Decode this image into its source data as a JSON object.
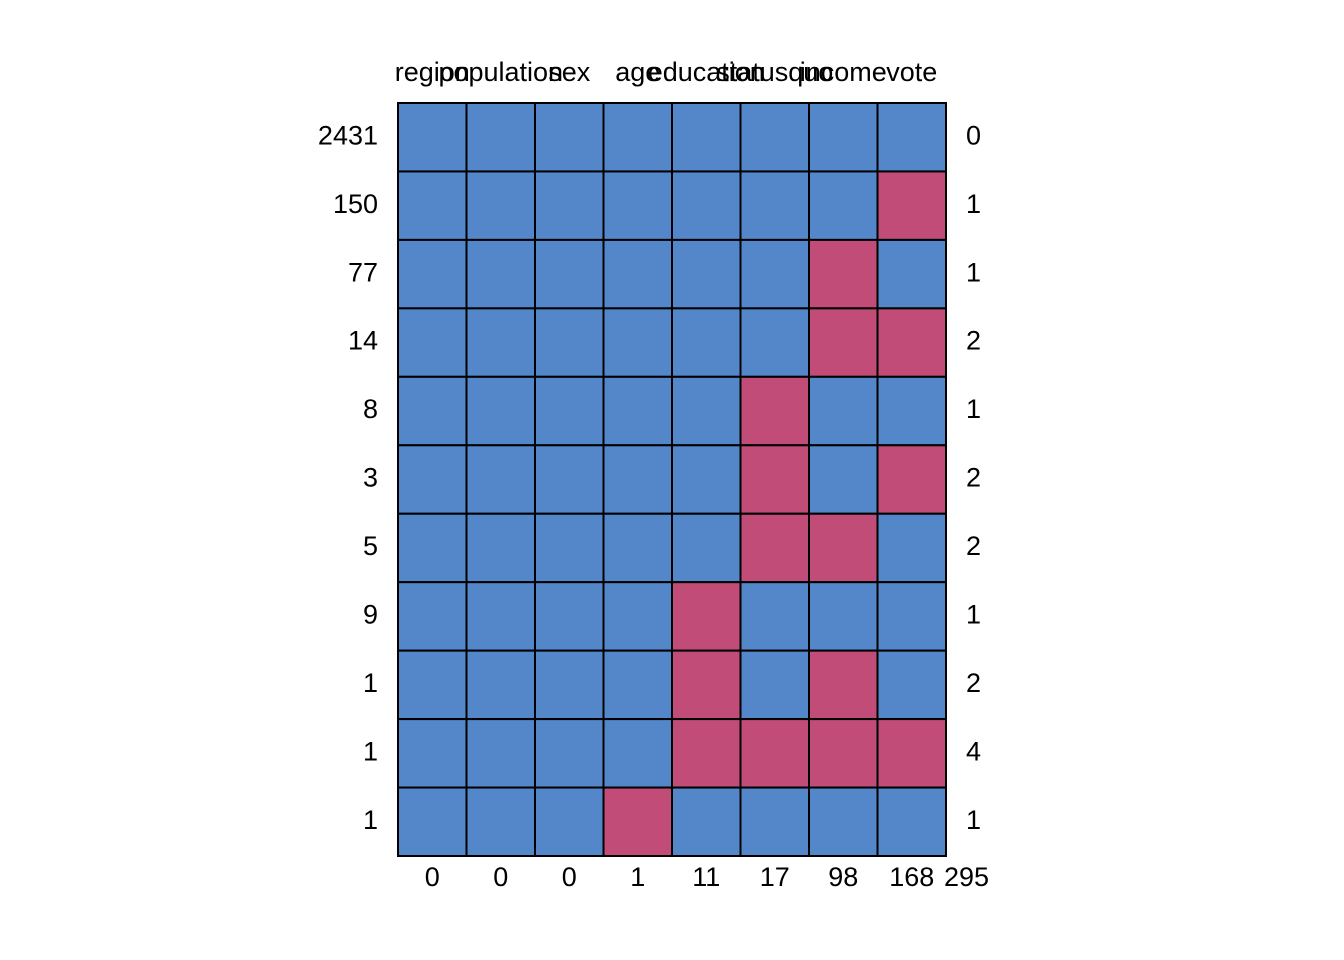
{
  "chart_data": {
    "type": "heatmap",
    "columns": [
      "region",
      "population",
      "sex",
      "age",
      "education",
      "statusquo",
      "income",
      "vote"
    ],
    "rows": [
      {
        "count": 2431,
        "pattern": [
          1,
          1,
          1,
          1,
          1,
          1,
          1,
          1
        ],
        "missing": 0
      },
      {
        "count": 150,
        "pattern": [
          1,
          1,
          1,
          1,
          1,
          1,
          1,
          0
        ],
        "missing": 1
      },
      {
        "count": 77,
        "pattern": [
          1,
          1,
          1,
          1,
          1,
          1,
          0,
          1
        ],
        "missing": 1
      },
      {
        "count": 14,
        "pattern": [
          1,
          1,
          1,
          1,
          1,
          1,
          0,
          0
        ],
        "missing": 2
      },
      {
        "count": 8,
        "pattern": [
          1,
          1,
          1,
          1,
          1,
          0,
          1,
          1
        ],
        "missing": 1
      },
      {
        "count": 3,
        "pattern": [
          1,
          1,
          1,
          1,
          1,
          0,
          1,
          0
        ],
        "missing": 2
      },
      {
        "count": 5,
        "pattern": [
          1,
          1,
          1,
          1,
          1,
          0,
          0,
          1
        ],
        "missing": 2
      },
      {
        "count": 9,
        "pattern": [
          1,
          1,
          1,
          1,
          0,
          1,
          1,
          1
        ],
        "missing": 1
      },
      {
        "count": 1,
        "pattern": [
          1,
          1,
          1,
          1,
          0,
          1,
          0,
          1
        ],
        "missing": 2
      },
      {
        "count": 1,
        "pattern": [
          1,
          1,
          1,
          1,
          0,
          0,
          0,
          0
        ],
        "missing": 4
      },
      {
        "count": 1,
        "pattern": [
          1,
          1,
          1,
          0,
          1,
          1,
          1,
          1
        ],
        "missing": 1
      }
    ],
    "column_missing": [
      0,
      0,
      0,
      1,
      11,
      17,
      98,
      168
    ],
    "total_missing": 295,
    "observed_color": "#5487c9",
    "missing_color": "#c04c77"
  }
}
